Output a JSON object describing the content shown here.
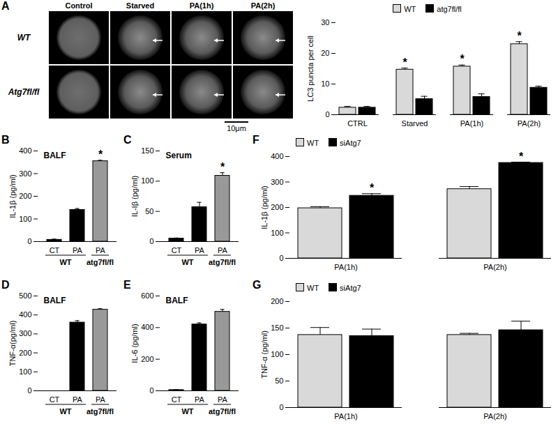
{
  "image_panel": {
    "panel": "A",
    "columns": [
      "Control",
      "Starved",
      "PA(1h)",
      "PA(2h)"
    ],
    "rows": [
      "WT",
      "Atg7fl/fl"
    ],
    "scale_bar": "10μm"
  },
  "chart_data": [
    {
      "type": "bar",
      "y_label": "LC3 puncta per cell",
      "categories": [
        "CTRL",
        "Starved",
        "PA(1h)",
        "PA(2h)"
      ],
      "series": [
        {
          "name": "WT",
          "color": "#d9d9d9",
          "values": [
            2.3,
            14.7,
            15.7,
            23.0
          ],
          "errors": [
            0.4,
            0.5,
            0.5,
            0.8
          ],
          "significance": [
            null,
            "*",
            "*",
            "*"
          ]
        },
        {
          "name": "atg7fl/fl",
          "color": "#000000",
          "values": [
            2.3,
            5.1,
            5.8,
            8.8
          ],
          "errors": [
            0.4,
            0.9,
            1.0,
            0.5
          ],
          "significance": [
            null,
            null,
            null,
            null
          ]
        }
      ],
      "legend": "top",
      "ylim": [
        0,
        30
      ],
      "yticks": [
        0,
        10,
        20,
        30
      ]
    },
    {
      "type": "bar",
      "annotations": [
        "B"
      ],
      "title": "BALF",
      "y_label": "IL-1β (pg/ml)",
      "categories": [
        "CT",
        "PA",
        "PA"
      ],
      "groups": [
        "WT",
        "WT",
        "atg7fl/fl"
      ],
      "values": [
        8,
        140,
        355
      ],
      "errors": [
        3,
        6,
        4
      ],
      "significance": [
        null,
        null,
        "*"
      ],
      "colors": [
        "#000000",
        "#000000",
        "#999999"
      ],
      "ylim": [
        0,
        400
      ],
      "yticks": [
        0,
        100,
        200,
        300,
        400
      ]
    },
    {
      "type": "bar",
      "annotations": [
        "C"
      ],
      "title": "Serum",
      "y_label": "IL-Iβ (pg/ml)",
      "categories": [
        "CT",
        "PA",
        "PA"
      ],
      "groups": [
        "WT",
        "WT",
        "atg7fl/fl"
      ],
      "values": [
        5,
        57,
        109
      ],
      "errors": [
        1,
        8,
        5
      ],
      "significance": [
        null,
        null,
        "*"
      ],
      "colors": [
        "#000000",
        "#000000",
        "#999999"
      ],
      "ylim": [
        0,
        150
      ],
      "yticks": [
        0,
        50,
        100,
        150
      ]
    },
    {
      "type": "bar",
      "annotations": [
        "D"
      ],
      "title": "BALF",
      "y_label": "TNF-α(pg/ml)",
      "categories": [
        "CT",
        "PA",
        "PA"
      ],
      "groups": [
        "WT",
        "WT",
        "atg7fl/fl"
      ],
      "values": [
        0,
        360,
        428
      ],
      "errors": [
        0,
        10,
        5
      ],
      "significance": [
        null,
        null,
        null
      ],
      "colors": [
        "#000000",
        "#000000",
        "#999999"
      ],
      "ylim": [
        0,
        500
      ],
      "yticks": [
        0,
        100,
        200,
        300,
        400,
        500
      ]
    },
    {
      "type": "bar",
      "annotations": [
        "E"
      ],
      "title": "BALF",
      "y_label": "IL-6 (pg/ml)",
      "categories": [
        "CT",
        "PA",
        "PA"
      ],
      "groups": [
        "WT",
        "WT",
        "atg7fl/fl"
      ],
      "values": [
        5,
        420,
        500
      ],
      "errors": [
        2,
        10,
        15
      ],
      "significance": [
        null,
        null,
        null
      ],
      "colors": [
        "#000000",
        "#000000",
        "#999999"
      ],
      "ylim": [
        0,
        600
      ],
      "yticks": [
        0,
        200,
        400,
        600
      ]
    },
    {
      "type": "bar",
      "annotations": [
        "F"
      ],
      "y_label": "IL-1β (pg/ml)",
      "categories": [
        "PA(1h)",
        "PA(2h)"
      ],
      "series": [
        {
          "name": "WT",
          "color": "#d9d9d9",
          "values": [
            197,
            272
          ],
          "errors": [
            6,
            10
          ],
          "significance": [
            null,
            null
          ]
        },
        {
          "name": "siAtg7",
          "color": "#000000",
          "values": [
            246,
            375
          ],
          "errors": [
            8,
            3
          ],
          "significance": [
            "*",
            "*"
          ]
        }
      ],
      "legend": "top-left",
      "ylim": [
        0,
        400
      ],
      "yticks": [
        0,
        100,
        200,
        300,
        400
      ]
    },
    {
      "type": "bar",
      "annotations": [
        "G"
      ],
      "y_label": "TNF-α (pg/ml)",
      "categories": [
        "PA(1h)",
        "PA(2h)"
      ],
      "series": [
        {
          "name": "WT",
          "color": "#d9d9d9",
          "values": [
            137,
            137
          ],
          "errors": [
            14,
            3
          ],
          "significance": [
            null,
            null
          ]
        },
        {
          "name": "siAtg7",
          "color": "#000000",
          "values": [
            135,
            146
          ],
          "errors": [
            13,
            17
          ],
          "significance": [
            null,
            null
          ]
        }
      ],
      "legend": "top-left",
      "ylim": [
        0,
        200
      ],
      "yticks": [
        0,
        50,
        100,
        150,
        200
      ]
    }
  ]
}
